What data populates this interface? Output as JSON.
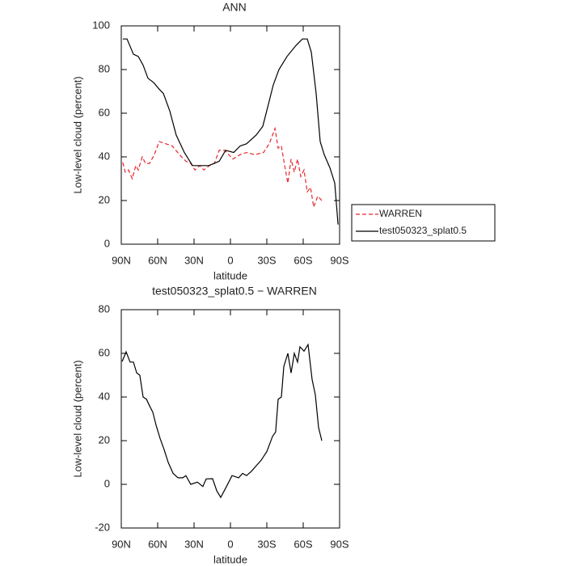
{
  "chart_data": [
    {
      "type": "line",
      "title": "ANN",
      "xlabel": "latitude",
      "ylabel": "Low-level cloud (percent)",
      "xlim": [
        90,
        -90
      ],
      "ylim": [
        0,
        100
      ],
      "xticks": [
        {
          "value": 90,
          "label": "90N"
        },
        {
          "value": 60,
          "label": "60N"
        },
        {
          "value": 30,
          "label": "30N"
        },
        0,
        {
          "value": -30,
          "label": "30S"
        },
        {
          "value": -60,
          "label": "60S"
        },
        {
          "value": -90,
          "label": "90S"
        }
      ],
      "yticks": [
        0,
        20,
        40,
        60,
        80,
        100
      ],
      "legend": "right",
      "series": [
        {
          "name": "WARREN",
          "color": "#e8262b",
          "dash": true,
          "x": [
            88.7,
            86.7,
            84,
            81,
            78,
            76,
            72.7,
            70,
            66.7,
            62.7,
            58.7,
            53.3,
            48,
            42,
            36.7,
            32.7,
            29.3,
            25.3,
            22,
            17.3,
            13.3,
            9.3,
            4.7,
            -2,
            -8,
            -13.3,
            -20,
            -27.3,
            -32,
            -36.7,
            -39.3,
            -42,
            -44.7,
            -47.3,
            -50,
            -52.7,
            -55.3,
            -58,
            -60.7,
            -63.3,
            -66,
            -68.7,
            -72,
            -75.3
          ],
          "values": [
            37.4,
            33,
            34,
            30,
            36,
            34,
            40,
            37,
            37,
            41,
            47,
            46,
            45,
            41,
            38,
            37,
            34,
            36,
            34,
            36,
            37,
            43,
            43,
            39,
            41,
            42,
            41,
            42,
            46,
            53,
            44,
            45,
            36,
            28,
            39,
            33,
            39,
            31,
            34,
            24,
            26,
            17,
            22,
            20
          ]
        },
        {
          "name": "test050323_splat0.5",
          "color": "#000000",
          "dash": false,
          "x": [
            88.7,
            85.3,
            80,
            76,
            72,
            68,
            63.3,
            58.7,
            55.3,
            50,
            44.7,
            38,
            31.3,
            24.7,
            18,
            13.3,
            9.3,
            4,
            -2.7,
            -8,
            -13.3,
            -21.3,
            -26.7,
            -31.3,
            -35.3,
            -40,
            -46.7,
            -54,
            -59.3,
            -63.3,
            -66.7,
            -70.7,
            -74,
            -77.3,
            -82,
            -86,
            -88.7
          ],
          "values": [
            94,
            94,
            87,
            86,
            82,
            76,
            74,
            71,
            69,
            61,
            50,
            42,
            36,
            36,
            36,
            37,
            38,
            43,
            42,
            45,
            46,
            50,
            54,
            64,
            73,
            80,
            86,
            91,
            94,
            94,
            88,
            69,
            47,
            41,
            35,
            28,
            9
          ]
        }
      ]
    },
    {
      "type": "line",
      "title": "test050323_splat0.5 − WARREN",
      "xlabel": "latitude",
      "ylabel": "Low-level cloud (percent)",
      "xlim": [
        90,
        -90
      ],
      "ylim": [
        -20,
        80
      ],
      "xticks": [
        {
          "value": 90,
          "label": "90N"
        },
        {
          "value": 60,
          "label": "60N"
        },
        {
          "value": 30,
          "label": "30N"
        },
        0,
        {
          "value": -30,
          "label": "30S"
        },
        {
          "value": -60,
          "label": "60S"
        },
        {
          "value": -90,
          "label": "90S"
        }
      ],
      "yticks": [
        -20,
        0,
        20,
        40,
        60,
        80
      ],
      "series": [
        {
          "color": "#000000",
          "dash": false,
          "x": [
            89.3,
            86,
            82.7,
            80,
            77.3,
            74.7,
            72,
            69.3,
            66.7,
            64,
            61.3,
            58,
            54.7,
            51.3,
            47.3,
            43.3,
            39.3,
            36.7,
            32.7,
            27.3,
            22.7,
            20,
            14.7,
            11.3,
            8,
            3.3,
            -1.3,
            -6.7,
            -10,
            -13.3,
            -17.3,
            -21.3,
            -25.3,
            -30,
            -34.7,
            -37.3,
            -39.3,
            -42,
            -44,
            -47.3,
            -50,
            -52.7,
            -55.3,
            -57.3,
            -60.7,
            -64,
            -67.3,
            -70,
            -72.7,
            -75.3
          ],
          "values": [
            56.3,
            60.7,
            56,
            56,
            51,
            50,
            40,
            39,
            36,
            33,
            27,
            21,
            16,
            10,
            5,
            3,
            3,
            4,
            0,
            1,
            -1,
            2.5,
            2.6,
            -3,
            -6,
            -1,
            4,
            3,
            5,
            4,
            6,
            8.5,
            11,
            15,
            22,
            24,
            39,
            40,
            54,
            60,
            51,
            60,
            56,
            63,
            61,
            64,
            48,
            41,
            26,
            20
          ]
        }
      ]
    }
  ]
}
